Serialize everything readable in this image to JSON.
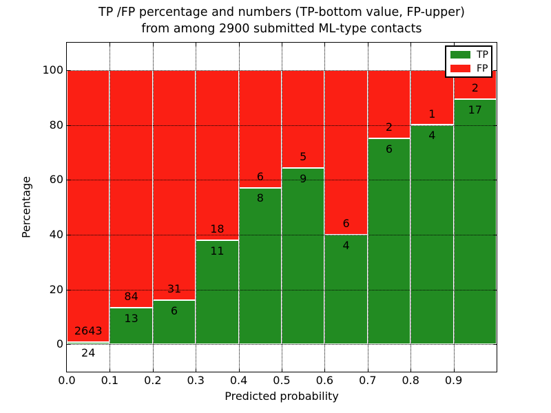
{
  "title": {
    "line1": "TP /FP percentage and numbers (TP-bottom value, FP-upper)",
    "line2": "from among 2900 submitted ML-type contacts"
  },
  "axes": {
    "xlabel": "Predicted probability",
    "ylabel": "Percentage",
    "x_tick_labels": [
      "0.0",
      "0.1",
      "0.2",
      "0.3",
      "0.4",
      "0.5",
      "0.6",
      "0.7",
      "0.8",
      "0.9"
    ],
    "y_tick_labels": [
      "0",
      "20",
      "40",
      "60",
      "80",
      "100"
    ]
  },
  "legend": {
    "items": [
      {
        "label": "TP",
        "color": "#228b22"
      },
      {
        "label": "FP",
        "color": "#fb1f14"
      }
    ]
  },
  "colors": {
    "tp_green": "#228b22",
    "fp_red": "#fb1f14",
    "bar_edge": "#ffffff",
    "grid": "#000000",
    "background": "#ffffff"
  },
  "chart_data": {
    "type": "bar",
    "stacked": true,
    "orientation": "vertical",
    "title": "TP /FP percentage and numbers (TP-bottom value, FP-upper) from among 2900 submitted ML-type contacts",
    "xlabel": "Predicted probability",
    "ylabel": "Percentage",
    "x_bin_edges": [
      0.0,
      0.1,
      0.2,
      0.3,
      0.4,
      0.5,
      0.6,
      0.7,
      0.8,
      0.9,
      1.0
    ],
    "x_ticks": [
      0.0,
      0.1,
      0.2,
      0.3,
      0.4,
      0.5,
      0.6,
      0.7,
      0.8,
      0.9
    ],
    "y_ticks": [
      0,
      20,
      40,
      60,
      80,
      100
    ],
    "xlim": [
      0.0,
      1.0
    ],
    "ylim": [
      -10,
      110
    ],
    "grid": true,
    "legend_position": "upper right",
    "annotation_scheme": "FP count printed above TP/FP boundary, TP count printed below boundary",
    "series": [
      {
        "name": "TP",
        "color": "#228b22",
        "counts": [
          24,
          13,
          6,
          11,
          8,
          9,
          4,
          6,
          4,
          17
        ],
        "percent_of_bin": [
          0.9,
          13.4,
          16.22,
          37.93,
          57.14,
          64.29,
          40.0,
          75.0,
          80.0,
          89.47
        ]
      },
      {
        "name": "FP",
        "color": "#fb1f14",
        "counts": [
          2643,
          84,
          31,
          18,
          6,
          5,
          6,
          2,
          1,
          2
        ],
        "percent_of_bin": [
          99.1,
          86.6,
          83.78,
          62.07,
          42.86,
          35.71,
          60.0,
          25.0,
          20.0,
          10.53
        ]
      }
    ],
    "total_contacts": 2900
  }
}
